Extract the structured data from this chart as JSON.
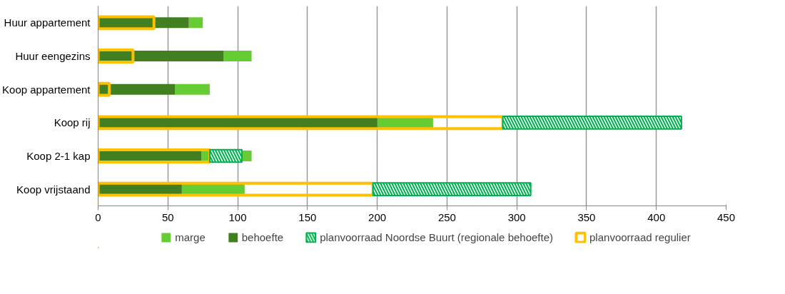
{
  "chart_data": {
    "type": "bar",
    "orientation": "horizontal",
    "categories": [
      "Huur appartement",
      "Huur eengezins",
      "Koop appartement",
      "Koop rij",
      "Koop 2-1 kap",
      "Koop vrijstaand"
    ],
    "series": [
      {
        "name": "marge",
        "color": "#66cc33",
        "values": [
          10,
          20,
          25,
          40,
          36,
          45
        ],
        "base": [
          65,
          90,
          55,
          200,
          74,
          60
        ]
      },
      {
        "name": "behoefte",
        "color": "#417f21",
        "values": [
          65,
          90,
          55,
          200,
          74,
          60
        ]
      },
      {
        "name": "planvoorraad Noordse Buurt (regionale behoefte)",
        "color": "#00b050",
        "values": [
          null,
          null,
          null,
          128,
          23,
          113
        ],
        "base": [
          null,
          null,
          null,
          290,
          80,
          197
        ]
      },
      {
        "name": "planvoorraad regulier",
        "color": "#ffc000",
        "values": [
          40,
          25,
          8,
          290,
          80,
          197
        ]
      }
    ],
    "xlim": [
      0,
      450
    ],
    "xticks": [
      0,
      50,
      100,
      150,
      200,
      250,
      300,
      350,
      400,
      450
    ],
    "grid": "x",
    "legend": "bottom"
  }
}
